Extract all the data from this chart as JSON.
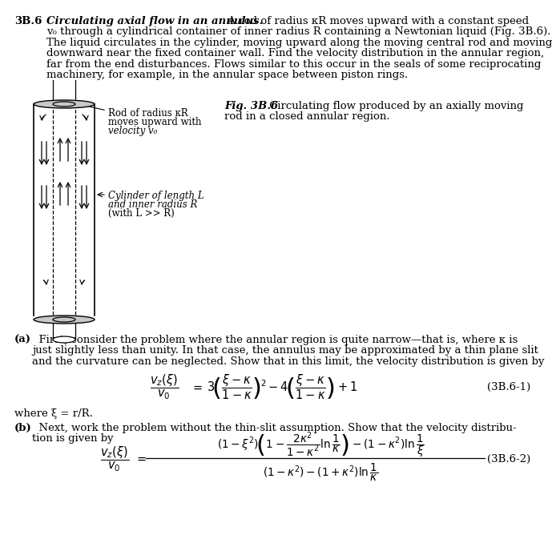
{
  "bg_color": "#ffffff",
  "text_color": "#000000",
  "fs_body": 9.5,
  "fs_eq": 10,
  "header_num": "3B.6",
  "header_bold": "Circulating axial flow in an annulus.",
  "header_rest1": "  A rod of radius κR moves upward with a constant speed",
  "header_lines": [
    "v₀ through a cylindrical container of inner radius R containing a Newtonian liquid (Fig. 3B.6).",
    "The liquid circulates in the cylinder, moving upward along the moving central rod and moving",
    "downward near the fixed container wall. Find the velocity distribution in the annular region,",
    "far from the end disturbances. Flows similar to this occur in the seals of some reciprocating",
    "machinery, for example, in the annular space between piston rings."
  ],
  "fig_bold": "Fig. 3B.6",
  "fig_text1": " Circulating flow produced by an axially moving",
  "fig_text2": "rod in a closed annular region.",
  "rod_label_line1": "Rod of radius κR",
  "rod_label_line2": "moves upward with",
  "rod_label_line3": "velocity v₀",
  "cyl_label_line1": "Cylinder of length L",
  "cyl_label_line2": "and inner radius R",
  "cyl_label_line3": "(with L >> R)",
  "part_a_bold": "(a)",
  "part_a_lines": [
    "  First, consider the problem where the annular region is quite narrow—that is, where κ is",
    "just slightly less than unity. In that case, the annulus may be approximated by a thin plane slit",
    "and the curvature can be neglected. Show that in this limit, the velocity distribution is given by"
  ],
  "eq1_label": "(3B.6-1)",
  "where_text": "where ξ = r/R.",
  "part_b_bold": "(b)",
  "part_b_lines": [
    "  Next, work the problem without the thin-slit assumption. Show that the velocity distribu-",
    "tion is given by"
  ],
  "eq2_label": "(3B.6-2)"
}
